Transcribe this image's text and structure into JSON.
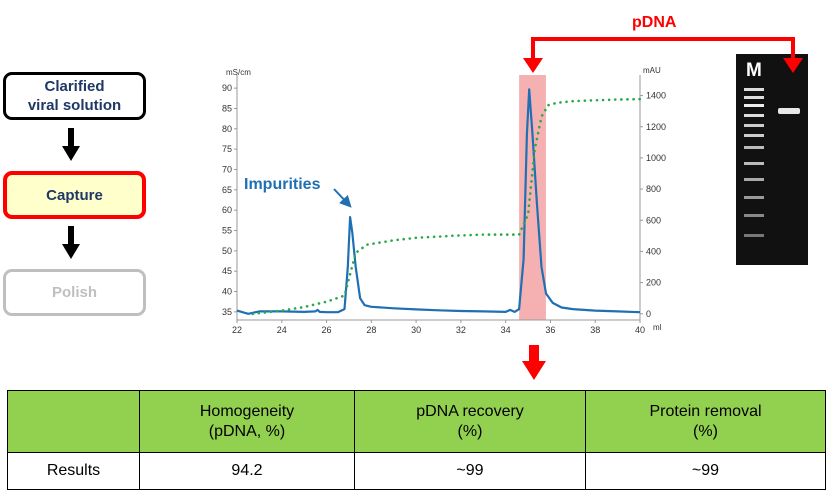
{
  "flow": {
    "step1": "Clarified\nviral solution",
    "step2": "Capture",
    "step3": "Polish"
  },
  "gel": {
    "lane_label": "M"
  },
  "callouts": {
    "pdna": "pDNA",
    "impurities": "Impurities"
  },
  "colors": {
    "absorbance": "#1f6fb4",
    "conductivity": "#2aa84a",
    "highlight": "#f4a8a8",
    "arrow": "#ff0000",
    "header_bg": "#92d050"
  },
  "chart_data": {
    "type": "line",
    "xlabel": "ml",
    "y_left_unit": "mS/cm",
    "y_right_unit": "mAU",
    "xlim": [
      22,
      40
    ],
    "ylim_left": [
      33,
      92
    ],
    "ylim_right": [
      -40,
      1500
    ],
    "xticks": [
      22,
      24,
      26,
      28,
      30,
      32,
      34,
      36,
      38,
      40
    ],
    "yticks_left": [
      35,
      40,
      45,
      50,
      55,
      60,
      65,
      70,
      75,
      80,
      85,
      90
    ],
    "yticks_right": [
      0,
      200,
      400,
      600,
      800,
      1000,
      1200,
      1400
    ],
    "highlight_x": [
      34.6,
      35.8
    ],
    "series": [
      {
        "style": "solid",
        "axis": "right",
        "x": [
          22,
          22.5,
          23,
          24,
          25,
          25.5,
          25.6,
          25.7,
          26,
          26.5,
          26.8,
          26.95,
          27.05,
          27.15,
          27.3,
          27.5,
          27.7,
          28,
          29,
          30,
          31,
          32,
          33,
          34,
          34.2,
          34.4,
          34.6,
          34.8,
          34.95,
          35.05,
          35.2,
          35.4,
          35.6,
          35.8,
          36.1,
          36.5,
          37,
          38,
          39,
          40
        ],
        "y": [
          20,
          0,
          15,
          15,
          12,
          15,
          25,
          12,
          10,
          10,
          30,
          300,
          620,
          520,
          300,
          100,
          55,
          45,
          35,
          28,
          22,
          18,
          15,
          12,
          25,
          12,
          30,
          350,
          1150,
          1440,
          1150,
          700,
          300,
          130,
          70,
          40,
          30,
          20,
          15,
          10
        ]
      },
      {
        "style": "dotted",
        "axis": "left",
        "x": [
          22.7,
          24,
          25,
          26,
          26.8,
          27.3,
          27.8,
          29,
          30,
          31,
          32,
          33,
          34,
          34.6,
          35,
          35.3,
          35.6,
          35.9,
          36.3,
          37,
          38,
          39,
          40
        ],
        "y": [
          34.5,
          35.3,
          36.2,
          37.5,
          39,
          49.5,
          51.5,
          52.6,
          53.2,
          53.5,
          53.8,
          54,
          54,
          54,
          59,
          75,
          83,
          85.8,
          86.4,
          86.8,
          87,
          87.2,
          87.3
        ]
      }
    ]
  },
  "table": {
    "headers": [
      "",
      "Homogeneity\n(pDNA, %)",
      "pDNA recovery\n(%)",
      "Protein removal\n(%)"
    ],
    "row": [
      "Results",
      "94.2",
      "~99",
      "~99"
    ]
  }
}
